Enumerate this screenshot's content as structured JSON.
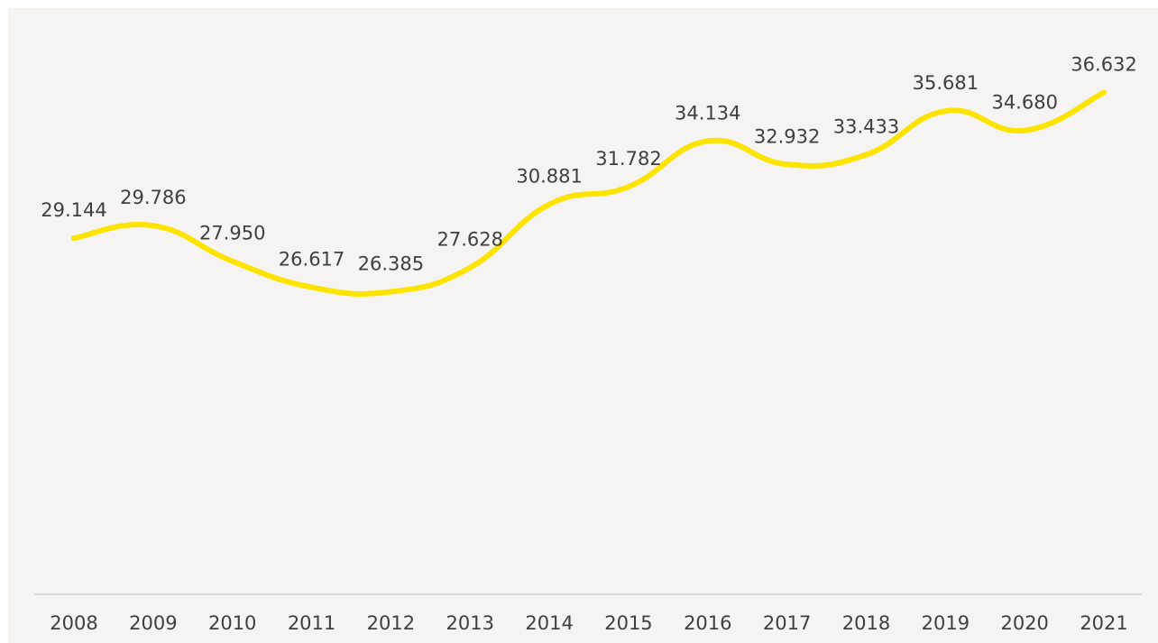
{
  "chart_data": {
    "type": "line",
    "categories": [
      "2008",
      "2009",
      "2010",
      "2011",
      "2012",
      "2013",
      "2014",
      "2015",
      "2016",
      "2017",
      "2018",
      "2019",
      "2020",
      "2021"
    ],
    "series": [
      {
        "values": [
          29.144,
          29.786,
          27.95,
          26.617,
          26.385,
          27.628,
          30.881,
          31.782,
          34.134,
          32.932,
          33.433,
          35.681,
          34.68,
          36.632
        ],
        "labels": [
          "29.144",
          "29.786",
          "27.950",
          "26.617",
          "26.385",
          "27.628",
          "30.881",
          "31.782",
          "34.134",
          "32.932",
          "33.433",
          "35.681",
          "34.680",
          "36.632"
        ],
        "color": "#fde300",
        "smooth": true
      }
    ],
    "title": "",
    "xlabel": "",
    "ylabel": "",
    "y_axis_visible": false,
    "grid": false,
    "legend": "none",
    "colors": {
      "background": "#f5f4f2",
      "axis_line": "#d9d9d9",
      "text": "#3f3f3f"
    }
  }
}
